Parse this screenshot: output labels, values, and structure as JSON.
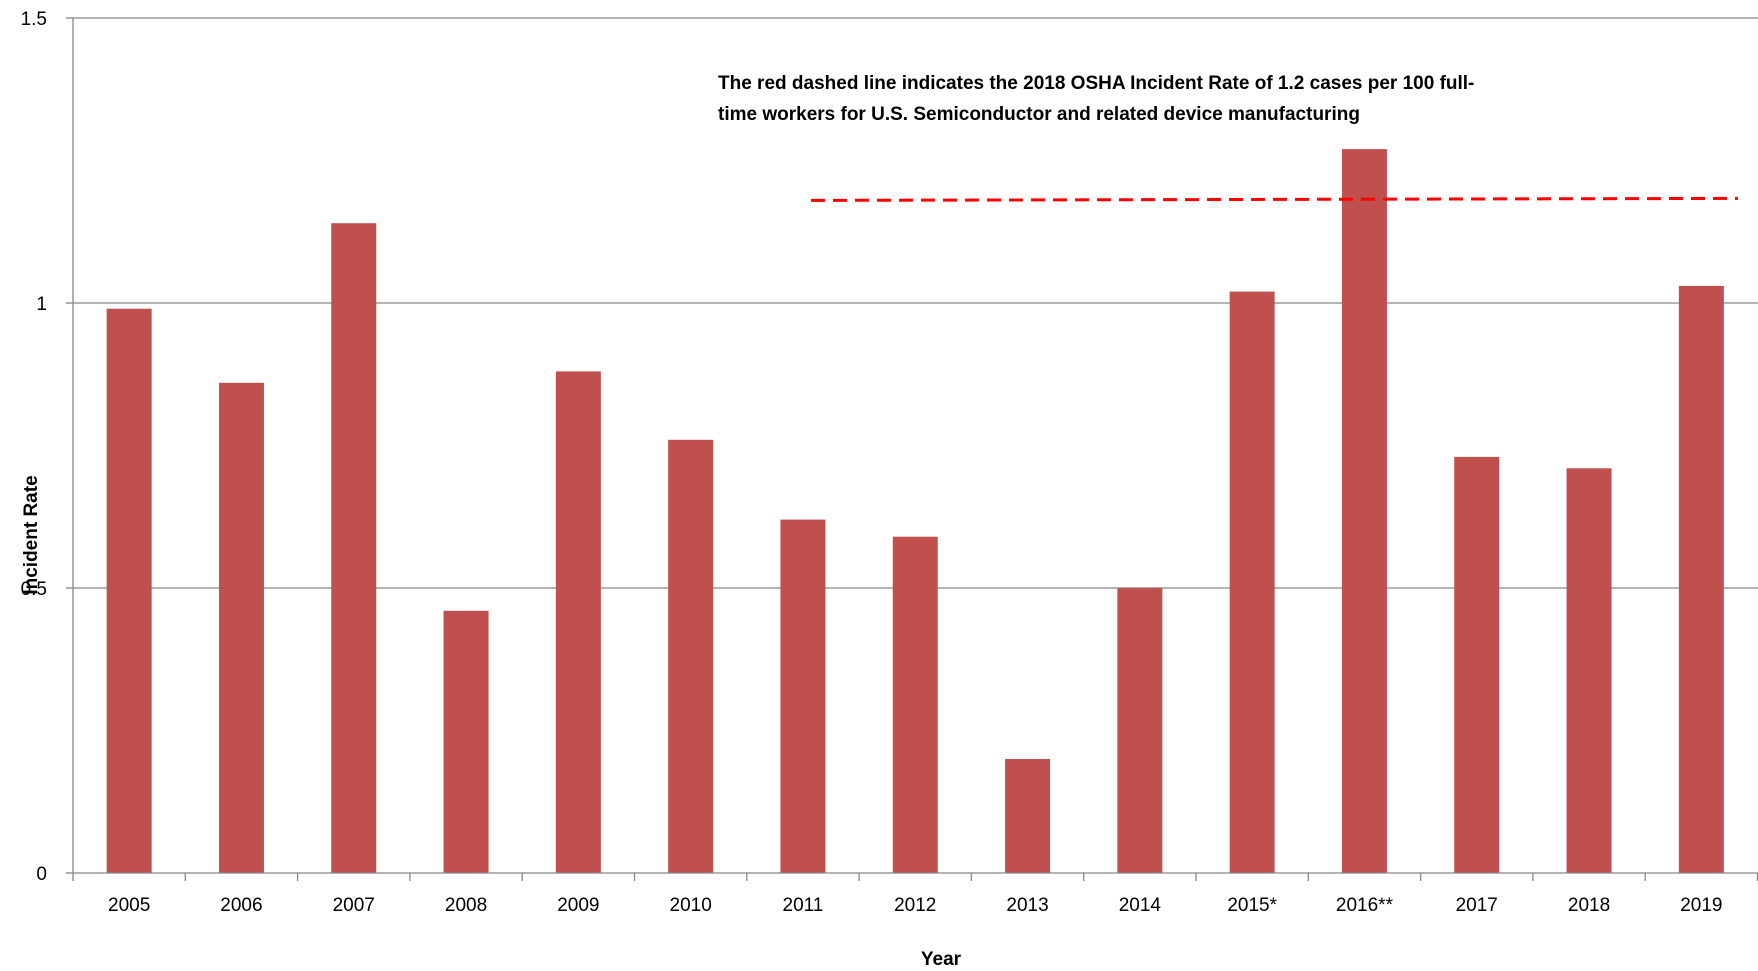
{
  "chart_data": {
    "type": "bar",
    "title": "",
    "xlabel": "Year",
    "ylabel": "Incident Rate",
    "categories": [
      "2005",
      "2006",
      "2007",
      "2008",
      "2009",
      "2010",
      "2011",
      "2012",
      "2013",
      "2014",
      "2015*",
      "2016**",
      "2017",
      "2018",
      "2019"
    ],
    "values": [
      0.99,
      0.86,
      1.14,
      0.46,
      0.88,
      0.76,
      0.62,
      0.59,
      0.2,
      0.5,
      1.02,
      1.27,
      0.73,
      0.71,
      1.03
    ],
    "ylim": [
      0,
      1.5
    ],
    "yticks": [
      "0",
      "0.5",
      "1",
      "1.5"
    ],
    "grid": true,
    "bar_color": "#c0504d",
    "reference_line": {
      "value": 1.18,
      "color": "#ff0000",
      "style": "dashed"
    },
    "annotation": [
      "The red dashed line indicates the 2018 OSHA Incident Rate of 1.2 cases per 100 full-",
      "time workers for U.S. Semiconductor and related device manufacturing"
    ]
  }
}
